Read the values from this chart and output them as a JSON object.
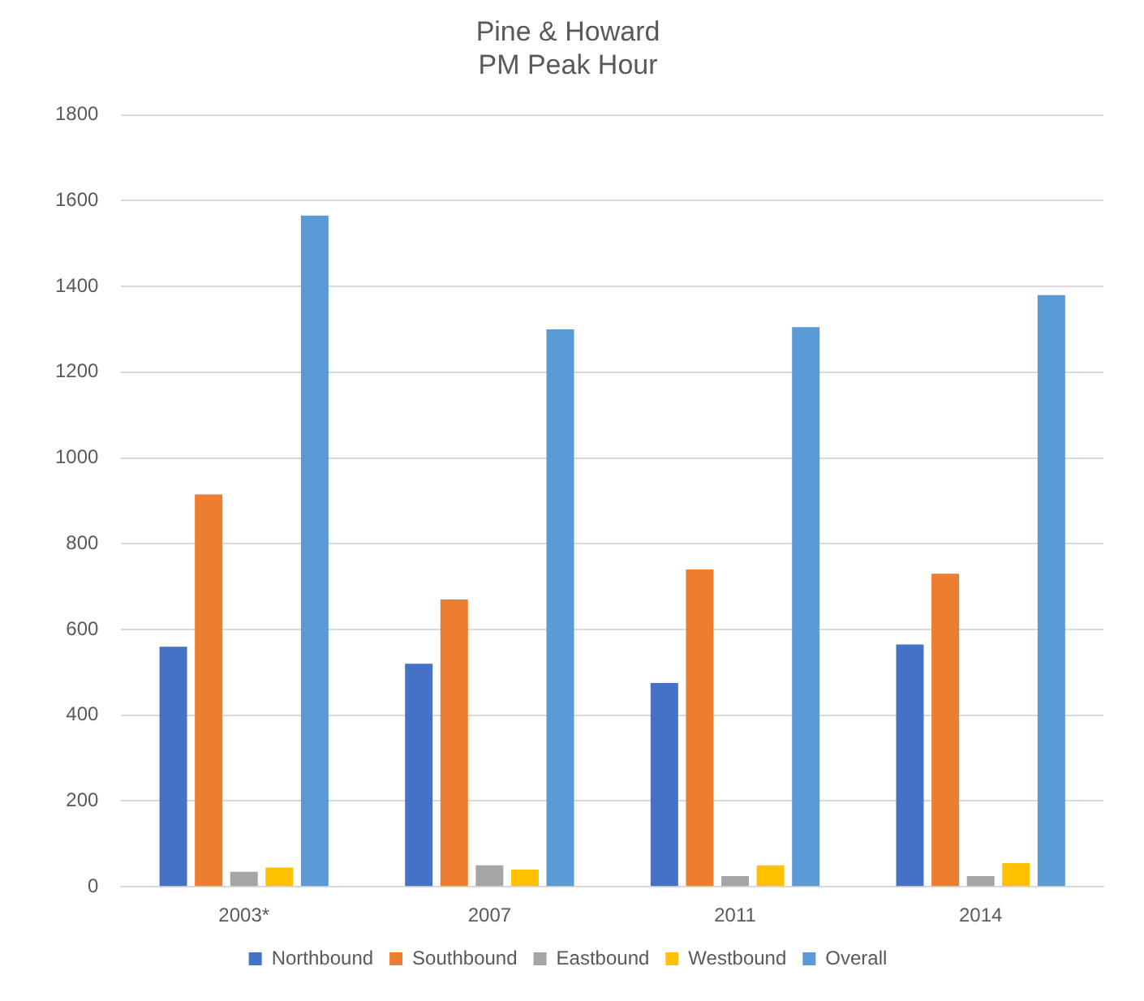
{
  "chart_data": {
    "type": "bar",
    "title": [
      "Pine & Howard",
      "PM Peak Hour"
    ],
    "categories": [
      "2003*",
      "2007",
      "2011",
      "2014"
    ],
    "series": [
      {
        "name": "Northbound",
        "color": "#4472c4",
        "values": [
          560,
          520,
          475,
          565
        ]
      },
      {
        "name": "Southbound",
        "color": "#ed7d31",
        "values": [
          915,
          670,
          740,
          730
        ]
      },
      {
        "name": "Eastbound",
        "color": "#a5a5a5",
        "values": [
          35,
          50,
          25,
          25
        ]
      },
      {
        "name": "Westbound",
        "color": "#ffc000",
        "values": [
          45,
          40,
          50,
          55
        ]
      },
      {
        "name": "Overall",
        "color": "#5b9bd5",
        "values": [
          1565,
          1300,
          1305,
          1380
        ]
      }
    ],
    "ylim": [
      0,
      1800
    ],
    "yticks": [
      0,
      200,
      400,
      600,
      800,
      1000,
      1200,
      1400,
      1600,
      1800
    ],
    "grid": "y",
    "legend": "bottom"
  }
}
